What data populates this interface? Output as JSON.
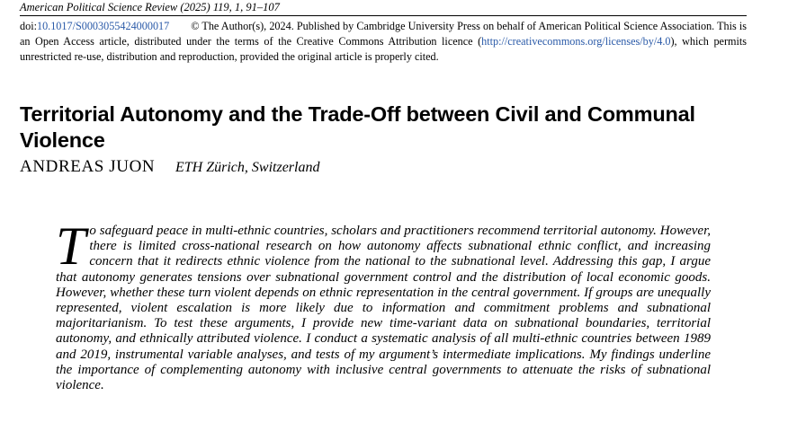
{
  "journal": {
    "citation": "American Political Science Review (2025) 119, 1, 91–107"
  },
  "license": {
    "doi_label": "doi:",
    "doi": "10.1017/S0003055424000017",
    "copyright": "© The Author(s), 2024. Published by Cambridge University Press on behalf of American Political Science Association. This is an Open Access article, distributed under the terms of the Creative Commons Attribution licence (",
    "license_url": "http://creativecommons.org/licenses/by/4.0",
    "license_tail": "), which permits unrestricted re-use, distribution and reproduction, provided the original article is properly cited."
  },
  "article": {
    "title": "Territorial Autonomy and the Trade-Off between Civil and Communal Violence",
    "author": "ANDREAS JUON",
    "affiliation": "ETH Zürich, Switzerland"
  },
  "abstract": {
    "dropcap": "T",
    "text": "o safeguard peace in multi-ethnic countries, scholars and practitioners recommend territorial autonomy. However, there is limited cross-national research on how autonomy affects subnational ethnic conflict, and increasing concern that it redirects ethnic violence from the national to the subnational level. Addressing this gap, I argue that autonomy generates tensions over subnational government control and the distribution of local economic goods. However, whether these turn violent depends on ethnic representation in the central government. If groups are unequally represented, violent escalation is more likely due to information and commitment problems and subnational majoritarianism. To test these arguments, I provide new time-variant data on subnational boundaries, territorial autonomy, and ethnically attributed violence. I conduct a systematic analysis of all multi-ethnic countries between 1989 and 2019, instrumental variable analyses, and tests of my argument’s intermediate implications. My findings underline the importance of complementing autonomy with inclusive central governments to attenuate the risks of subnational violence."
  },
  "colors": {
    "text": "#000000",
    "link": "#2a5aa8",
    "background": "#ffffff"
  }
}
